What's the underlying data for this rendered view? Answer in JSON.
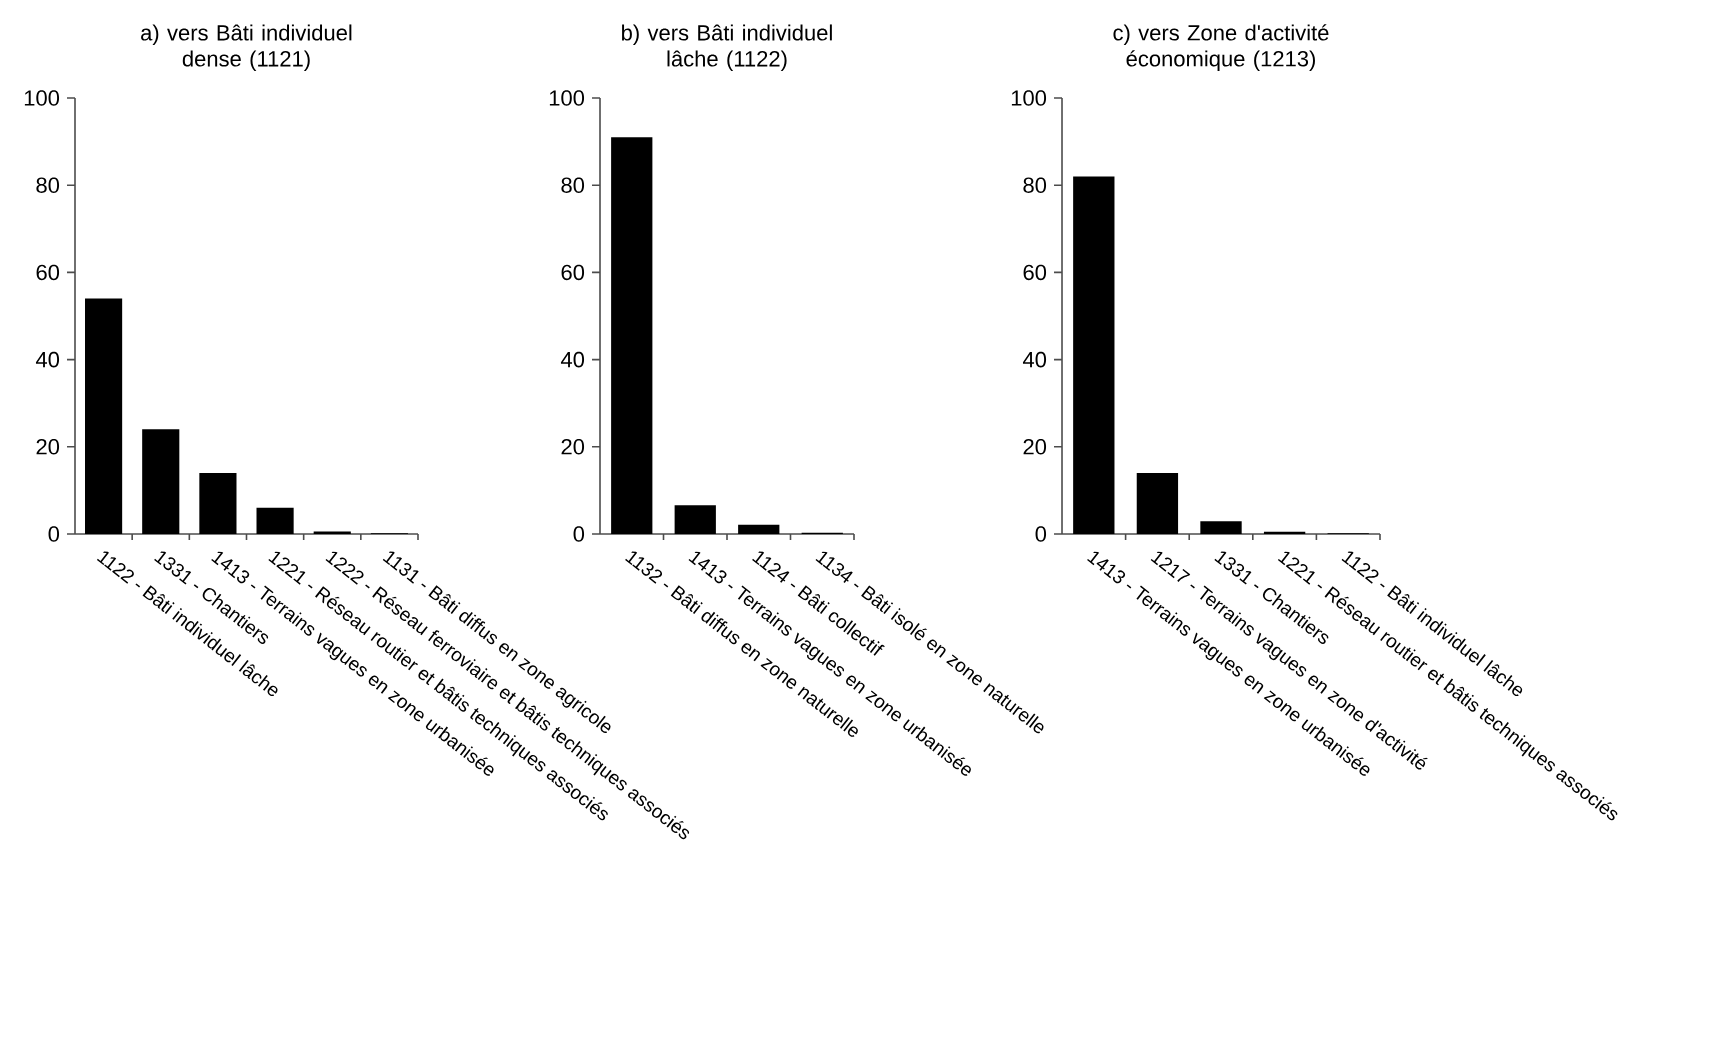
{
  "chart_data": [
    {
      "type": "bar",
      "title": "a) vers Bâti individuel dense (1121)",
      "categories": [
        "1122 - Bâti individuel lâche",
        "1331 - Chantiers",
        "1413 - Terrains vagues en zone urbanisée",
        "1221 - Réseau routier et bâtis techniques associés",
        "1222 - Réseau ferroviaire et bâtis techniques associés",
        "1131 - Bâti diffus en zone agricole"
      ],
      "values": [
        54,
        24,
        14,
        6,
        0.6,
        0.2
      ],
      "color": "#000000",
      "ylim": [
        0,
        100
      ],
      "yticks": [
        0,
        20,
        40,
        60,
        80,
        100
      ]
    },
    {
      "type": "bar",
      "title": "b) vers Bâti individuel lâche (1122)",
      "categories": [
        "1132 - Bâti diffus en zone naturelle",
        "1413 - Terrains vagues en zone urbanisée",
        "1124 - Bâti collectif",
        "1134 - Bâti isolé en zone naturelle"
      ],
      "values": [
        91,
        6.6,
        2.1,
        0.3
      ],
      "color": "#000000",
      "ylim": [
        0,
        100
      ],
      "yticks": [
        0,
        20,
        40,
        60,
        80,
        100
      ]
    },
    {
      "type": "bar",
      "title": "c) vers Zone d'activité économique (1213)",
      "categories": [
        "1413 - Terrains vagues en zone urbanisée",
        "1217 - Terrains vagues en zone d'activité",
        "1331 - Chantiers",
        "1221 - Réseau routier et bâtis techniques associés",
        "1122 - Bâti individuel lâche"
      ],
      "values": [
        82,
        14,
        2.9,
        0.5,
        0.2
      ],
      "color": "#000000",
      "ylim": [
        0,
        100
      ],
      "yticks": [
        0,
        20,
        40,
        60,
        80,
        100
      ]
    }
  ]
}
